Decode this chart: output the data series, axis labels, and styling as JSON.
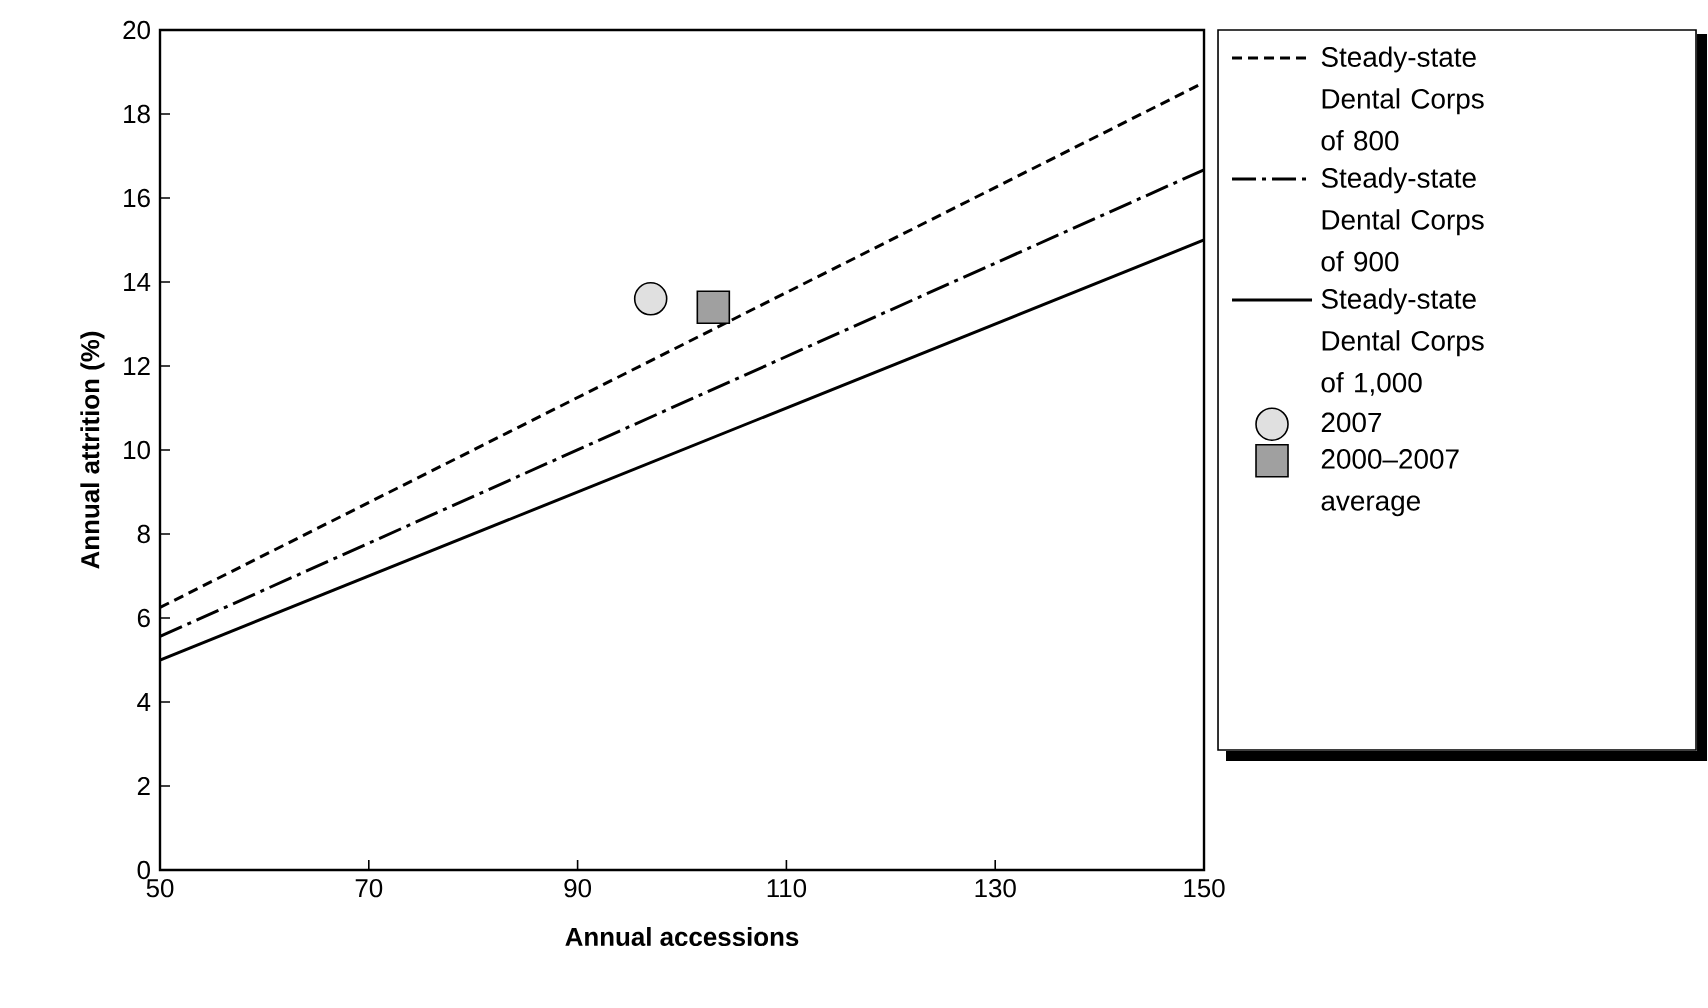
{
  "chart_data": {
    "type": "line",
    "xlabel": "Annual accessions",
    "ylabel": "Annual attrition (%)",
    "xlim": [
      50,
      150
    ],
    "ylim": [
      0,
      20
    ],
    "xticks": [
      50,
      70,
      90,
      110,
      130,
      150
    ],
    "yticks": [
      0,
      2,
      4,
      6,
      8,
      10,
      12,
      14,
      16,
      18,
      20
    ],
    "legend": "right",
    "grid": false,
    "series": [
      {
        "name": "Steady-state Dental Corps of 800",
        "color": "#000000",
        "line_style": "dashed",
        "marker": "none",
        "x": [
          50,
          150
        ],
        "values": [
          6.25,
          18.75
        ]
      },
      {
        "name": "Steady-state Dental Corps of 900",
        "color": "#000000",
        "line_style": "dashdot",
        "marker": "none",
        "x": [
          50,
          150
        ],
        "values": [
          5.56,
          16.67
        ]
      },
      {
        "name": "Steady-state Dental Corps of 1,000",
        "color": "#000000",
        "line_style": "solid",
        "marker": "none",
        "x": [
          50,
          150
        ],
        "values": [
          5,
          15
        ]
      },
      {
        "name": "2007",
        "type": "scatter",
        "color": "#e0e0e0",
        "marker": "circle",
        "x": [
          97
        ],
        "values": [
          13.6
        ]
      },
      {
        "name": "2000–2007 average",
        "type": "scatter",
        "color": "#a0a0a0",
        "marker": "square",
        "x": [
          103
        ],
        "values": [
          13.4
        ]
      }
    ]
  }
}
